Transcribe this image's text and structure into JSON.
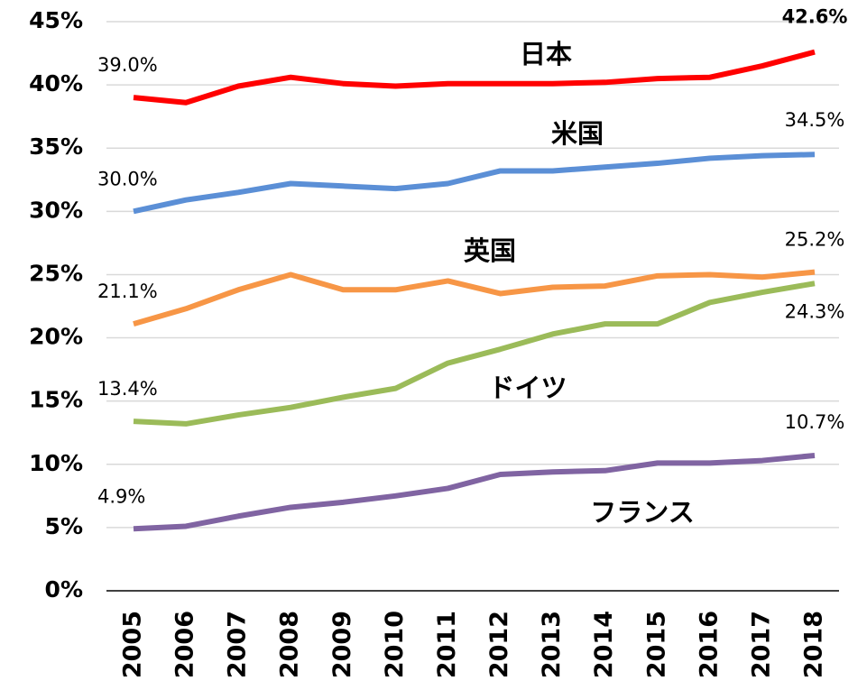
{
  "chart_data": {
    "type": "line",
    "x": [
      2005,
      2006,
      2007,
      2008,
      2009,
      2010,
      2011,
      2012,
      2013,
      2014,
      2015,
      2016,
      2017,
      2018
    ],
    "xlim": [
      2005,
      2018
    ],
    "ylim": [
      0,
      45
    ],
    "yticks": [
      {
        "value": 0,
        "label": "0%"
      },
      {
        "value": 5,
        "label": "5%"
      },
      {
        "value": 10,
        "label": "10%"
      },
      {
        "value": 15,
        "label": "15%"
      },
      {
        "value": 20,
        "label": "20%"
      },
      {
        "value": 25,
        "label": "25%"
      },
      {
        "value": 30,
        "label": "30%"
      },
      {
        "value": 35,
        "label": "35%"
      },
      {
        "value": 40,
        "label": "40%"
      },
      {
        "value": 45,
        "label": "45%"
      }
    ],
    "grid": true,
    "series": [
      {
        "name": "日本",
        "color": "#ff0000",
        "values": [
          39.0,
          38.6,
          39.9,
          40.6,
          40.1,
          39.9,
          40.1,
          40.1,
          40.1,
          40.2,
          40.5,
          40.6,
          41.5,
          42.6
        ],
        "value_labels": [
          "39.0%",
          null,
          null,
          null,
          null,
          null,
          null,
          null,
          null,
          null,
          null,
          null,
          null,
          "42.6%"
        ]
      },
      {
        "name": "米国",
        "color": "#5b8fd6",
        "values": [
          30.0,
          30.9,
          31.5,
          32.2,
          32.0,
          31.8,
          32.2,
          33.2,
          33.2,
          33.5,
          33.8,
          34.2,
          34.4,
          34.5
        ],
        "value_labels": [
          "30.0%",
          null,
          null,
          null,
          null,
          null,
          null,
          null,
          null,
          null,
          null,
          null,
          null,
          "34.5%"
        ]
      },
      {
        "name": "英国",
        "color": "#f79646",
        "values": [
          21.1,
          22.3,
          23.8,
          25.0,
          23.8,
          23.8,
          24.5,
          23.5,
          24.0,
          24.1,
          24.9,
          25.0,
          24.8,
          25.2
        ],
        "value_labels": [
          "21.1%",
          null,
          null,
          null,
          null,
          null,
          null,
          null,
          null,
          null,
          null,
          null,
          null,
          "25.2%"
        ]
      },
      {
        "name": "ドイツ",
        "color": "#9bbb59",
        "values": [
          13.4,
          13.2,
          13.9,
          14.5,
          15.3,
          16.0,
          18.0,
          19.1,
          20.3,
          21.1,
          21.1,
          22.8,
          23.6,
          24.3
        ],
        "value_labels": [
          "13.4%",
          null,
          null,
          null,
          null,
          null,
          null,
          null,
          null,
          null,
          null,
          null,
          null,
          "24.3%"
        ]
      },
      {
        "name": "フランス",
        "color": "#8064a2",
        "values": [
          4.9,
          5.1,
          5.9,
          6.6,
          7.0,
          7.5,
          8.1,
          9.2,
          9.4,
          9.5,
          10.1,
          10.1,
          10.3,
          10.7
        ],
        "value_labels": [
          "4.9%",
          null,
          null,
          null,
          null,
          null,
          null,
          null,
          null,
          null,
          null,
          null,
          null,
          "10.7%"
        ]
      }
    ]
  }
}
